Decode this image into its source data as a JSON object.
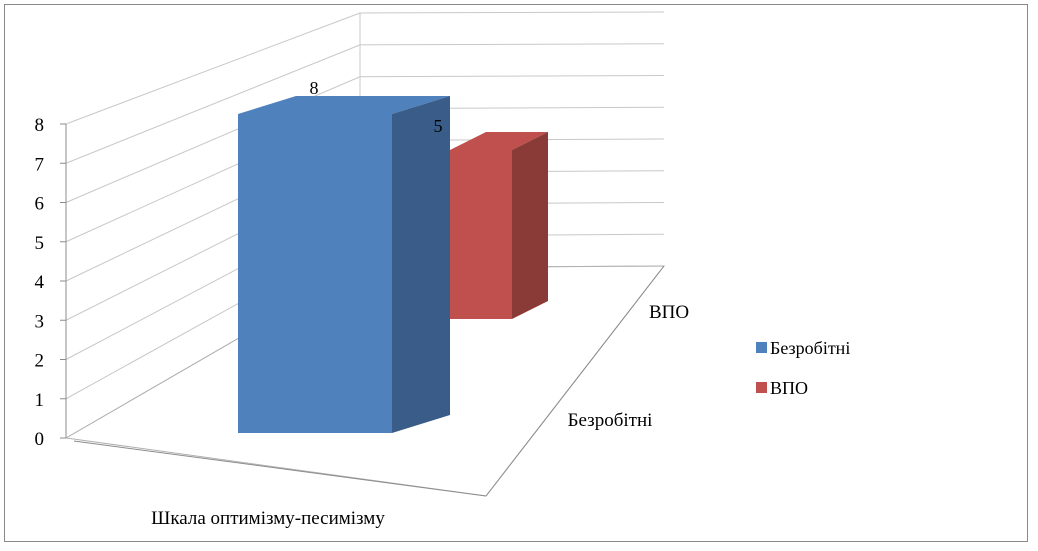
{
  "chart_data": {
    "type": "bar",
    "title": "",
    "categories": [
      "Шкала оптимізму-песимізму"
    ],
    "depth_categories": [
      "Безробітні",
      "ВПО"
    ],
    "series": [
      {
        "name": "Безробітні",
        "values": [
          8
        ],
        "color": "#4F81BD"
      },
      {
        "name": "ВПО",
        "values": [
          5
        ],
        "color": "#C0504D"
      }
    ],
    "y_ticks": [
      "0",
      "1",
      "2",
      "3",
      "4",
      "5",
      "6",
      "7",
      "8"
    ],
    "ylim": [
      0,
      8
    ],
    "data_labels": [
      "8",
      "5"
    ],
    "grid": true,
    "legend_position": "right",
    "three_d": true
  }
}
